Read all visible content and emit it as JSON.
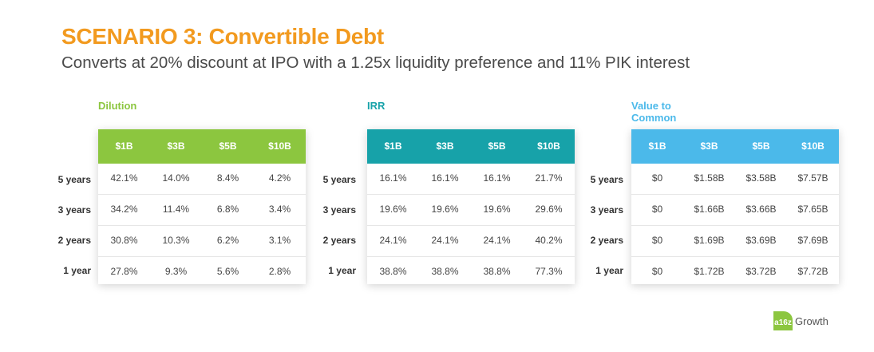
{
  "title": "SCENARIO 3: Convertible Debt",
  "subtitle": "Converts at 20% discount at IPO with a 1.25x liquidity preference and 11% PIK interest",
  "row_labels": [
    "5 years",
    "3 years",
    "2 years",
    "1 year"
  ],
  "tables": [
    {
      "label": "Dilution",
      "color": "#8cc63f",
      "headers": [
        "$1B",
        "$3B",
        "$5B",
        "$10B"
      ],
      "rows": [
        [
          "42.1%",
          "14.0%",
          "8.4%",
          "4.2%"
        ],
        [
          "34.2%",
          "11.4%",
          "6.8%",
          "3.4%"
        ],
        [
          "30.8%",
          "10.3%",
          "6.2%",
          "3.1%"
        ],
        [
          "27.8%",
          "9.3%",
          "5.6%",
          "2.8%"
        ]
      ]
    },
    {
      "label": "IRR",
      "color": "#17a2a9",
      "headers": [
        "$1B",
        "$3B",
        "$5B",
        "$10B"
      ],
      "rows": [
        [
          "16.1%",
          "16.1%",
          "16.1%",
          "21.7%"
        ],
        [
          "19.6%",
          "19.6%",
          "19.6%",
          "29.6%"
        ],
        [
          "24.1%",
          "24.1%",
          "24.1%",
          "40.2%"
        ],
        [
          "38.8%",
          "38.8%",
          "38.8%",
          "77.3%"
        ]
      ]
    },
    {
      "label": "Value to Common",
      "color": "#4bb9ea",
      "headers": [
        "$1B",
        "$3B",
        "$5B",
        "$10B"
      ],
      "rows": [
        [
          "$0",
          "$1.58B",
          "$3.58B",
          "$7.57B"
        ],
        [
          "$0",
          "$1.66B",
          "$3.66B",
          "$7.65B"
        ],
        [
          "$0",
          "$1.69B",
          "$3.69B",
          "$7.69B"
        ],
        [
          "$0",
          "$1.72B",
          "$3.72B",
          "$7.72B"
        ]
      ]
    }
  ],
  "logo": {
    "badge": "a16z",
    "text": "Growth"
  }
}
